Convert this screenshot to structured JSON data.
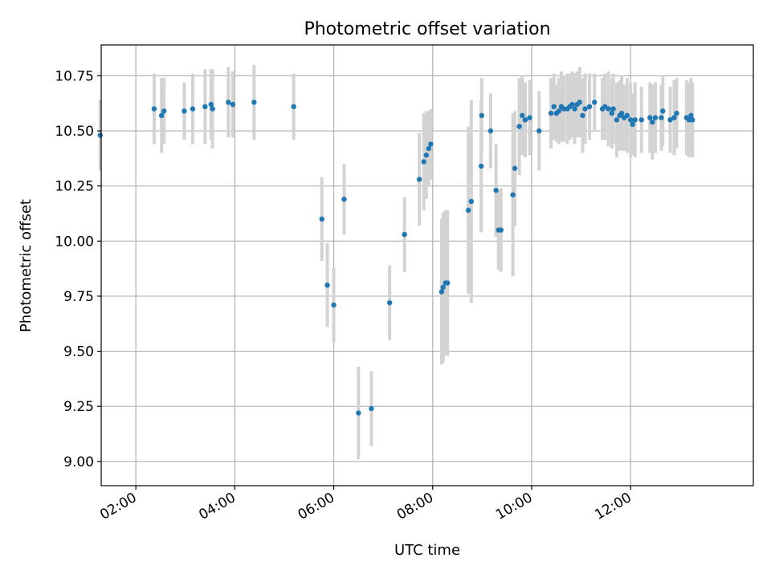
{
  "chart_data": {
    "type": "scatter",
    "title": "Photometric offset variation",
    "xlabel": "UTC time",
    "ylabel": "Photometric offset",
    "x_unit": "hours (UTC)",
    "xlim": [
      1.3,
      14.48
    ],
    "ylim": [
      8.89,
      10.89
    ],
    "x_ticks": [
      2,
      4,
      6,
      8,
      10,
      12
    ],
    "x_tick_labels": [
      "02:00",
      "04:00",
      "06:00",
      "08:00",
      "10:00",
      "12:00"
    ],
    "y_ticks": [
      9.0,
      9.25,
      9.5,
      9.75,
      10.0,
      10.25,
      10.5,
      10.75
    ],
    "y_tick_labels": [
      "9.00",
      "9.25",
      "9.50",
      "9.75",
      "10.00",
      "10.25",
      "10.50",
      "10.75"
    ],
    "grid": true,
    "colors": {
      "point": "#1f77b4",
      "errorbar": "#d3d3d3",
      "grid": "#b0b0b0"
    },
    "series": [
      {
        "x": [
          1.28,
          2.37,
          2.52,
          2.57,
          2.98,
          3.15,
          3.4,
          3.52,
          3.55,
          3.87,
          3.96,
          4.39,
          5.19,
          5.76,
          5.87,
          6.0,
          6.21,
          6.5,
          6.76,
          7.13,
          7.43,
          7.73,
          7.82,
          7.87,
          7.92,
          7.96,
          8.18,
          8.21,
          8.26,
          8.3,
          8.72,
          8.78,
          8.98,
          8.99,
          9.17,
          9.28,
          9.33,
          9.38,
          9.62,
          9.66,
          9.75,
          9.81,
          9.87,
          9.96,
          10.15,
          10.39,
          10.45,
          10.5,
          10.55,
          10.6,
          10.65,
          10.72,
          10.77,
          10.82,
          10.87,
          10.92,
          10.97,
          11.03,
          11.08,
          11.17,
          11.27,
          11.43,
          11.48,
          11.55,
          11.62,
          11.65,
          11.72,
          11.78,
          11.82,
          11.87,
          11.93,
          12.0,
          12.04,
          12.09,
          12.22,
          12.39,
          12.44,
          12.5,
          12.62,
          12.65,
          12.8,
          12.88,
          12.93,
          13.13,
          13.18,
          13.22,
          13.25
        ],
        "y": [
          10.48,
          10.6,
          10.57,
          10.59,
          10.59,
          10.6,
          10.61,
          10.62,
          10.6,
          10.63,
          10.62,
          10.63,
          10.61,
          10.1,
          9.8,
          9.71,
          10.19,
          9.22,
          9.24,
          9.72,
          10.03,
          10.28,
          10.36,
          10.39,
          10.42,
          10.44,
          9.77,
          9.79,
          9.81,
          9.81,
          10.14,
          10.18,
          10.34,
          10.57,
          10.5,
          10.23,
          10.05,
          10.05,
          10.21,
          10.33,
          10.52,
          10.57,
          10.55,
          10.56,
          10.5,
          10.58,
          10.61,
          10.58,
          10.59,
          10.61,
          10.6,
          10.6,
          10.61,
          10.62,
          10.6,
          10.62,
          10.63,
          10.57,
          10.6,
          10.61,
          10.63,
          10.6,
          10.61,
          10.6,
          10.58,
          10.6,
          10.55,
          10.57,
          10.58,
          10.56,
          10.57,
          10.55,
          10.53,
          10.55,
          10.55,
          10.56,
          10.54,
          10.56,
          10.56,
          10.59,
          10.55,
          10.56,
          10.58,
          10.56,
          10.55,
          10.57,
          10.55
        ],
        "yerr": [
          0.16,
          0.16,
          0.17,
          0.15,
          0.13,
          0.16,
          0.17,
          0.16,
          0.18,
          0.16,
          0.15,
          0.17,
          0.15,
          0.19,
          0.19,
          0.17,
          0.16,
          0.21,
          0.17,
          0.17,
          0.17,
          0.21,
          0.22,
          0.2,
          0.17,
          0.16,
          0.33,
          0.34,
          0.33,
          0.33,
          0.38,
          0.46,
          0.3,
          0.17,
          0.17,
          0.21,
          0.18,
          0.19,
          0.37,
          0.26,
          0.22,
          0.18,
          0.17,
          0.17,
          0.18,
          0.16,
          0.15,
          0.13,
          0.15,
          0.16,
          0.15,
          0.16,
          0.15,
          0.15,
          0.16,
          0.15,
          0.16,
          0.17,
          0.16,
          0.15,
          0.13,
          0.14,
          0.15,
          0.17,
          0.16,
          0.16,
          0.17,
          0.16,
          0.17,
          0.15,
          0.17,
          0.17,
          0.14,
          0.17,
          0.15,
          0.16,
          0.17,
          0.16,
          0.15,
          0.16,
          0.15,
          0.17,
          0.16,
          0.17,
          0.17,
          0.17,
          0.17
        ]
      }
    ]
  }
}
